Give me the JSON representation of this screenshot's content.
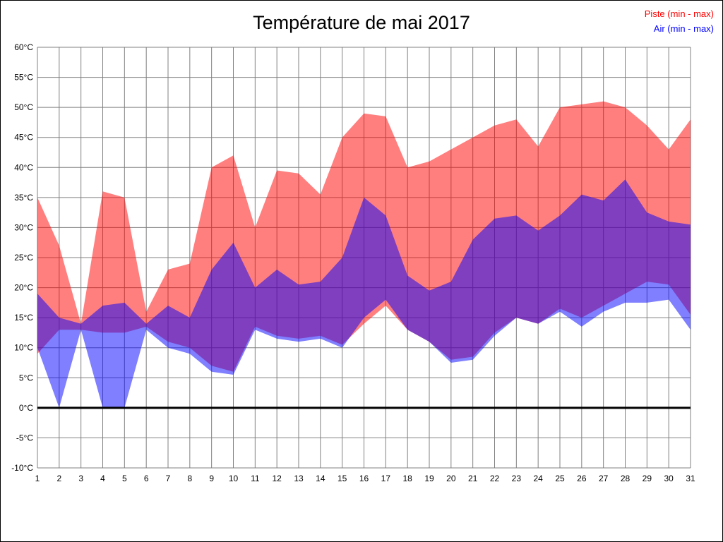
{
  "title": "Température de mai 2017",
  "legend": {
    "piste_label": "Piste (min - max)",
    "air_label": "Air (min - max)"
  },
  "colors": {
    "piste": "#ff0000",
    "air": "#0000ff",
    "piste_fill": "rgba(255,0,0,0.5)",
    "air_fill": "rgba(0,0,255,0.5)",
    "grid": "#808080",
    "zero_line": "#000000",
    "text": "#000000"
  },
  "chart_data": {
    "type": "area",
    "title": "Température de mai 2017",
    "xlabel": "",
    "ylabel": "",
    "x": [
      1,
      2,
      3,
      4,
      5,
      6,
      7,
      8,
      9,
      10,
      11,
      12,
      13,
      14,
      15,
      16,
      17,
      18,
      19,
      20,
      21,
      22,
      23,
      24,
      25,
      26,
      27,
      28,
      29,
      30,
      31
    ],
    "series": [
      {
        "name": "Piste min",
        "values": [
          9,
          13,
          13,
          12.5,
          12.5,
          13.5,
          11,
          10,
          7,
          6,
          13.5,
          12,
          11.5,
          12,
          10.5,
          14,
          17,
          13,
          11,
          8,
          8.5,
          12.5,
          15,
          14,
          16.5,
          15,
          17,
          19,
          21,
          20.5,
          15.5
        ]
      },
      {
        "name": "Piste max",
        "values": [
          35,
          27,
          14,
          36,
          35,
          16,
          23,
          24,
          40,
          42,
          30,
          39.5,
          39,
          35.5,
          45,
          49,
          48.5,
          40,
          41,
          43,
          45,
          47,
          48,
          43.5,
          50,
          50.5,
          51,
          50,
          47,
          43,
          48
        ]
      },
      {
        "name": "Air min",
        "values": [
          10,
          0,
          13,
          0,
          0,
          13,
          10,
          9,
          6,
          5.5,
          13,
          11.5,
          11,
          11.5,
          10,
          15,
          18,
          13,
          11,
          7.5,
          8,
          12,
          15,
          14,
          16,
          13.5,
          16,
          17.5,
          17.5,
          18,
          13
        ]
      },
      {
        "name": "Air max",
        "values": [
          19,
          15,
          14,
          17,
          17.5,
          14,
          17,
          15,
          23,
          27.5,
          20,
          23,
          20.5,
          21,
          25,
          35,
          32,
          22,
          19.5,
          21,
          28,
          31.5,
          32,
          29.5,
          32,
          35.5,
          34.5,
          38,
          32.5,
          31,
          30.5
        ]
      }
    ],
    "ylim": [
      -10,
      60
    ],
    "ytick_step": 5,
    "ytick_suffix": "°C",
    "grid": true,
    "zero_line": true,
    "legend_position": "top-right"
  }
}
